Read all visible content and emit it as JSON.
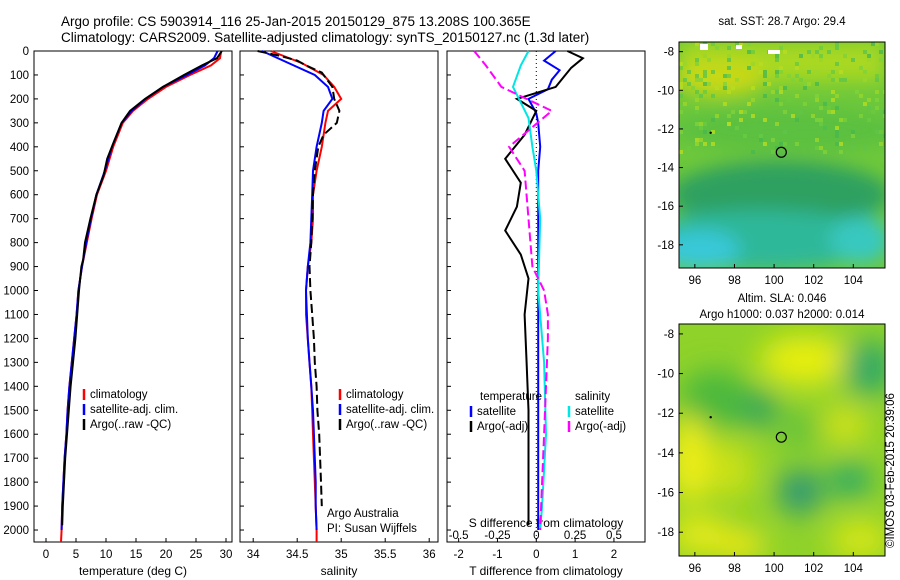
{
  "title": {
    "line1": "Argo profile: CS 5903914_116 25-Jan-2015 20150129_875 13.208S 100.365E",
    "line2": "Climatology: CARS2009. Satellite-adjusted climatology: synTS_20150127.nc (1.3d later)"
  },
  "credit": "©IMOS 03-Feb-2015 20:39:06",
  "colors": {
    "climatology": "#ff0000",
    "satellite": "#0000ff",
    "argo": "#000000",
    "satellite_salinity": "#00e5e5",
    "argo_salinity_adj": "#ff00ff"
  },
  "chart_data": [
    {
      "type": "line",
      "name": "temperature-profile",
      "xlabel": "temperature (deg C)",
      "xlim": [
        -2,
        31
      ],
      "ylim": [
        2050,
        0
      ],
      "x_ticks": [
        0,
        5,
        10,
        15,
        20,
        25,
        30
      ],
      "y_ticks": [
        0,
        100,
        200,
        300,
        400,
        500,
        600,
        700,
        800,
        900,
        1000,
        1100,
        1200,
        1300,
        1400,
        1500,
        1600,
        1700,
        1800,
        1900,
        2000
      ],
      "legend": [
        "climatology",
        "satellite-adj. clim.",
        "Argo(..raw -QC)"
      ],
      "legend_position": "lower-center",
      "series": [
        {
          "name": "climatology",
          "color": "#ff0000",
          "points": [
            [
              29.2,
              0
            ],
            [
              29,
              30
            ],
            [
              27.5,
              60
            ],
            [
              24,
              100
            ],
            [
              20,
              150
            ],
            [
              17,
              200
            ],
            [
              14.5,
              250
            ],
            [
              12.8,
              300
            ],
            [
              11.2,
              400
            ],
            [
              10,
              500
            ],
            [
              8.5,
              600
            ],
            [
              7.6,
              700
            ],
            [
              6.8,
              800
            ],
            [
              6,
              900
            ],
            [
              5.4,
              1000
            ],
            [
              5.1,
              1100
            ],
            [
              4.7,
              1200
            ],
            [
              4.3,
              1300
            ],
            [
              3.9,
              1400
            ],
            [
              3.6,
              1500
            ],
            [
              3.4,
              1600
            ],
            [
              3.1,
              1700
            ],
            [
              2.9,
              1800
            ],
            [
              2.7,
              1900
            ],
            [
              2.6,
              2000
            ],
            [
              2.5,
              2050
            ]
          ]
        },
        {
          "name": "satellite-adj. clim.",
          "color": "#0000ff",
          "points": [
            [
              28.6,
              0
            ],
            [
              28,
              30
            ],
            [
              26.5,
              60
            ],
            [
              23.5,
              100
            ],
            [
              19.5,
              150
            ],
            [
              16.6,
              200
            ],
            [
              14.3,
              250
            ],
            [
              12.6,
              300
            ],
            [
              11,
              400
            ],
            [
              9.8,
              500
            ],
            [
              8.4,
              600
            ],
            [
              7.5,
              700
            ],
            [
              6.7,
              800
            ],
            [
              6,
              900
            ],
            [
              5.4,
              1000
            ],
            [
              5.1,
              1100
            ],
            [
              4.7,
              1200
            ],
            [
              4.3,
              1300
            ],
            [
              3.9,
              1400
            ],
            [
              3.6,
              1500
            ],
            [
              3.4,
              1600
            ],
            [
              3.1,
              1700
            ],
            [
              2.9,
              1800
            ],
            [
              2.7,
              1900
            ],
            [
              2.6,
              2000
            ]
          ]
        },
        {
          "name": "Argo(..raw -QC)",
          "color": "#000000",
          "points": [
            [
              29.3,
              0
            ],
            [
              28.5,
              30
            ],
            [
              26,
              60
            ],
            [
              23,
              100
            ],
            [
              19.5,
              150
            ],
            [
              16.5,
              200
            ],
            [
              14,
              250
            ],
            [
              12.6,
              300
            ],
            [
              11.3,
              380
            ],
            [
              10.2,
              450
            ],
            [
              9.6,
              520
            ],
            [
              8.4,
              600
            ],
            [
              7.4,
              700
            ],
            [
              6.5,
              800
            ],
            [
              6.2,
              870
            ],
            [
              5.9,
              900
            ],
            [
              5.5,
              1000
            ],
            [
              5.2,
              1100
            ],
            [
              4.9,
              1200
            ],
            [
              4.5,
              1300
            ],
            [
              4.1,
              1400
            ],
            [
              3.8,
              1500
            ],
            [
              3.5,
              1600
            ],
            [
              3.2,
              1700
            ],
            [
              3,
              1800
            ],
            [
              2.8,
              1900
            ],
            [
              2.7,
              1980
            ]
          ]
        }
      ]
    },
    {
      "type": "line",
      "name": "salinity-profile",
      "xlabel": "salinity",
      "xlim": [
        33.85,
        36.1
      ],
      "ylim": [
        2050,
        0
      ],
      "x_ticks": [
        34,
        34.5,
        35,
        35.5,
        36
      ],
      "legend": [
        "climatology",
        "satellite-adj. clim.",
        "Argo(..raw -QC)"
      ],
      "legend_position": "lower-right",
      "annotations": [
        "Argo Australia",
        "PI: Susan Wijffels"
      ],
      "series": [
        {
          "name": "climatology",
          "color": "#ff0000",
          "points": [
            [
              34.2,
              0
            ],
            [
              34.55,
              50
            ],
            [
              34.8,
              100
            ],
            [
              34.92,
              150
            ],
            [
              35,
              200
            ],
            [
              34.85,
              250
            ],
            [
              34.82,
              300
            ],
            [
              34.78,
              400
            ],
            [
              34.72,
              500
            ],
            [
              34.68,
              600
            ],
            [
              34.68,
              700
            ],
            [
              34.66,
              800
            ],
            [
              34.62,
              900
            ],
            [
              34.6,
              1000
            ],
            [
              34.6,
              1100
            ],
            [
              34.62,
              1200
            ],
            [
              34.64,
              1300
            ],
            [
              34.66,
              1400
            ],
            [
              34.67,
              1500
            ],
            [
              34.68,
              1600
            ],
            [
              34.69,
              1700
            ],
            [
              34.7,
              1800
            ],
            [
              34.71,
              1900
            ],
            [
              34.72,
              2000
            ],
            [
              34.72,
              2050
            ]
          ]
        },
        {
          "name": "satellite-adj. clim.",
          "color": "#0000ff",
          "points": [
            [
              34.1,
              0
            ],
            [
              34.4,
              50
            ],
            [
              34.7,
              100
            ],
            [
              34.85,
              150
            ],
            [
              34.9,
              200
            ],
            [
              34.8,
              250
            ],
            [
              34.78,
              300
            ],
            [
              34.72,
              400
            ],
            [
              34.68,
              500
            ],
            [
              34.67,
              600
            ],
            [
              34.66,
              700
            ],
            [
              34.65,
              800
            ],
            [
              34.62,
              900
            ],
            [
              34.6,
              1000
            ],
            [
              34.61,
              1100
            ],
            [
              34.62,
              1200
            ],
            [
              34.64,
              1300
            ],
            [
              34.66,
              1400
            ],
            [
              34.68,
              1500
            ],
            [
              34.69,
              1600
            ],
            [
              34.7,
              1700
            ],
            [
              34.71,
              1800
            ],
            [
              34.71,
              1900
            ],
            [
              34.72,
              2000
            ]
          ]
        },
        {
          "name": "Argo(..raw -QC)",
          "color": "#000000",
          "points": [
            [
              34.05,
              0
            ],
            [
              34.3,
              20
            ],
            [
              34.5,
              40
            ],
            [
              34.6,
              60
            ],
            [
              34.78,
              90
            ],
            [
              34.9,
              150
            ],
            [
              34.92,
              200
            ],
            [
              34.98,
              250
            ],
            [
              34.95,
              300
            ],
            [
              34.8,
              350
            ],
            [
              34.74,
              400
            ],
            [
              34.7,
              500
            ],
            [
              34.68,
              600
            ],
            [
              34.67,
              700
            ],
            [
              34.66,
              800
            ],
            [
              34.64,
              900
            ],
            [
              34.65,
              1000
            ],
            [
              34.67,
              1100
            ],
            [
              34.69,
              1200
            ],
            [
              34.7,
              1300
            ],
            [
              34.72,
              1400
            ],
            [
              34.73,
              1500
            ],
            [
              34.75,
              1600
            ],
            [
              34.76,
              1700
            ],
            [
              34.77,
              1800
            ],
            [
              34.78,
              1900
            ]
          ]
        }
      ]
    },
    {
      "type": "line",
      "name": "difference-profile",
      "xlabel": "T difference from climatology",
      "xlabel_top": "S difference from climatology",
      "xlim": [
        -2.3,
        2.8
      ],
      "ylim": [
        2050,
        0
      ],
      "x_ticks": [
        -2,
        -1,
        0,
        1,
        2
      ],
      "s_ticks": [
        -0.5,
        -0.25,
        0,
        0.25,
        0.5
      ],
      "legend_groups": [
        {
          "title": "temperature",
          "items": [
            "satellite",
            "Argo(-adj)"
          ]
        },
        {
          "title": "salinity",
          "items": [
            "satellite",
            "Argo(-adj)"
          ]
        }
      ],
      "series": [
        {
          "name": "temperature satellite",
          "color": "#0000ff",
          "points": [
            [
              0.5,
              0
            ],
            [
              0.2,
              40
            ],
            [
              0.6,
              80
            ],
            [
              0.4,
              120
            ],
            [
              0.3,
              160
            ],
            [
              -0.2,
              200
            ],
            [
              0,
              260
            ],
            [
              0.05,
              300
            ],
            [
              0.1,
              400
            ],
            [
              0.05,
              500
            ],
            [
              0.05,
              700
            ],
            [
              0.05,
              1000
            ],
            [
              0.05,
              1500
            ],
            [
              0.05,
              2000
            ]
          ]
        },
        {
          "name": "temperature Argo(-adj)",
          "color": "#000000",
          "points": [
            [
              0.8,
              0
            ],
            [
              1.2,
              30
            ],
            [
              0.9,
              70
            ],
            [
              0.7,
              110
            ],
            [
              0.5,
              150
            ],
            [
              -0.5,
              200
            ],
            [
              0,
              250
            ],
            [
              -0.3,
              350
            ],
            [
              -0.8,
              450
            ],
            [
              -0.4,
              550
            ],
            [
              -0.5,
              650
            ],
            [
              -0.8,
              750
            ],
            [
              -0.4,
              850
            ],
            [
              -0.2,
              950
            ],
            [
              -0.3,
              1100
            ],
            [
              -0.25,
              1300
            ],
            [
              -0.2,
              1500
            ],
            [
              -0.2,
              1700
            ],
            [
              -0.2,
              1900
            ],
            [
              -0.2,
              1980
            ]
          ]
        },
        {
          "name": "salinity satellite",
          "color": "#00e5e5",
          "points": [
            [
              -0.2,
              0
            ],
            [
              -0.4,
              60
            ],
            [
              -0.6,
              150
            ],
            [
              -0.2,
              280
            ],
            [
              -0.1,
              400
            ],
            [
              0,
              500
            ],
            [
              0.1,
              700
            ],
            [
              0.05,
              1000
            ],
            [
              0.2,
              1300
            ],
            [
              0.25,
              1600
            ],
            [
              0.15,
              1900
            ],
            [
              0.1,
              2000
            ]
          ]
        },
        {
          "name": "salinity Argo(-adj)",
          "color": "#ff00ff",
          "points": [
            [
              -1.6,
              0
            ],
            [
              -1.3,
              60
            ],
            [
              -0.9,
              150
            ],
            [
              0.4,
              250
            ],
            [
              -0.7,
              400
            ],
            [
              -0.3,
              500
            ],
            [
              -0.2,
              700
            ],
            [
              -0.1,
              900
            ],
            [
              0.2,
              1000
            ],
            [
              0.3,
              1100
            ],
            [
              0.3,
              1200
            ],
            [
              0.25,
              1400
            ],
            [
              0.2,
              1600
            ],
            [
              0.15,
              1800
            ],
            [
              0.1,
              2000
            ]
          ]
        }
      ]
    },
    {
      "type": "heatmap",
      "name": "sst-map",
      "title": "sat. SST: 28.7  Argo: 29.4",
      "xlim": [
        95.2,
        105.6
      ],
      "ylim": [
        -19.2,
        -7.5
      ],
      "x_ticks": [
        96,
        98,
        100,
        102,
        104
      ],
      "y_ticks": [
        -8,
        -10,
        -12,
        -14,
        -16,
        -18
      ],
      "marker": {
        "lon": 100.365,
        "lat": -13.208
      }
    },
    {
      "type": "heatmap",
      "name": "sla-map",
      "title": "Altim. SLA: 0.046",
      "subtitle": "Argo h1000: 0.037 h2000: 0.014",
      "xlim": [
        95.2,
        105.6
      ],
      "ylim": [
        -19.2,
        -7.5
      ],
      "x_ticks": [
        96,
        98,
        100,
        102,
        104
      ],
      "y_ticks": [
        -8,
        -10,
        -12,
        -14,
        -16,
        -18
      ],
      "marker": {
        "lon": 100.365,
        "lat": -13.208
      }
    }
  ]
}
